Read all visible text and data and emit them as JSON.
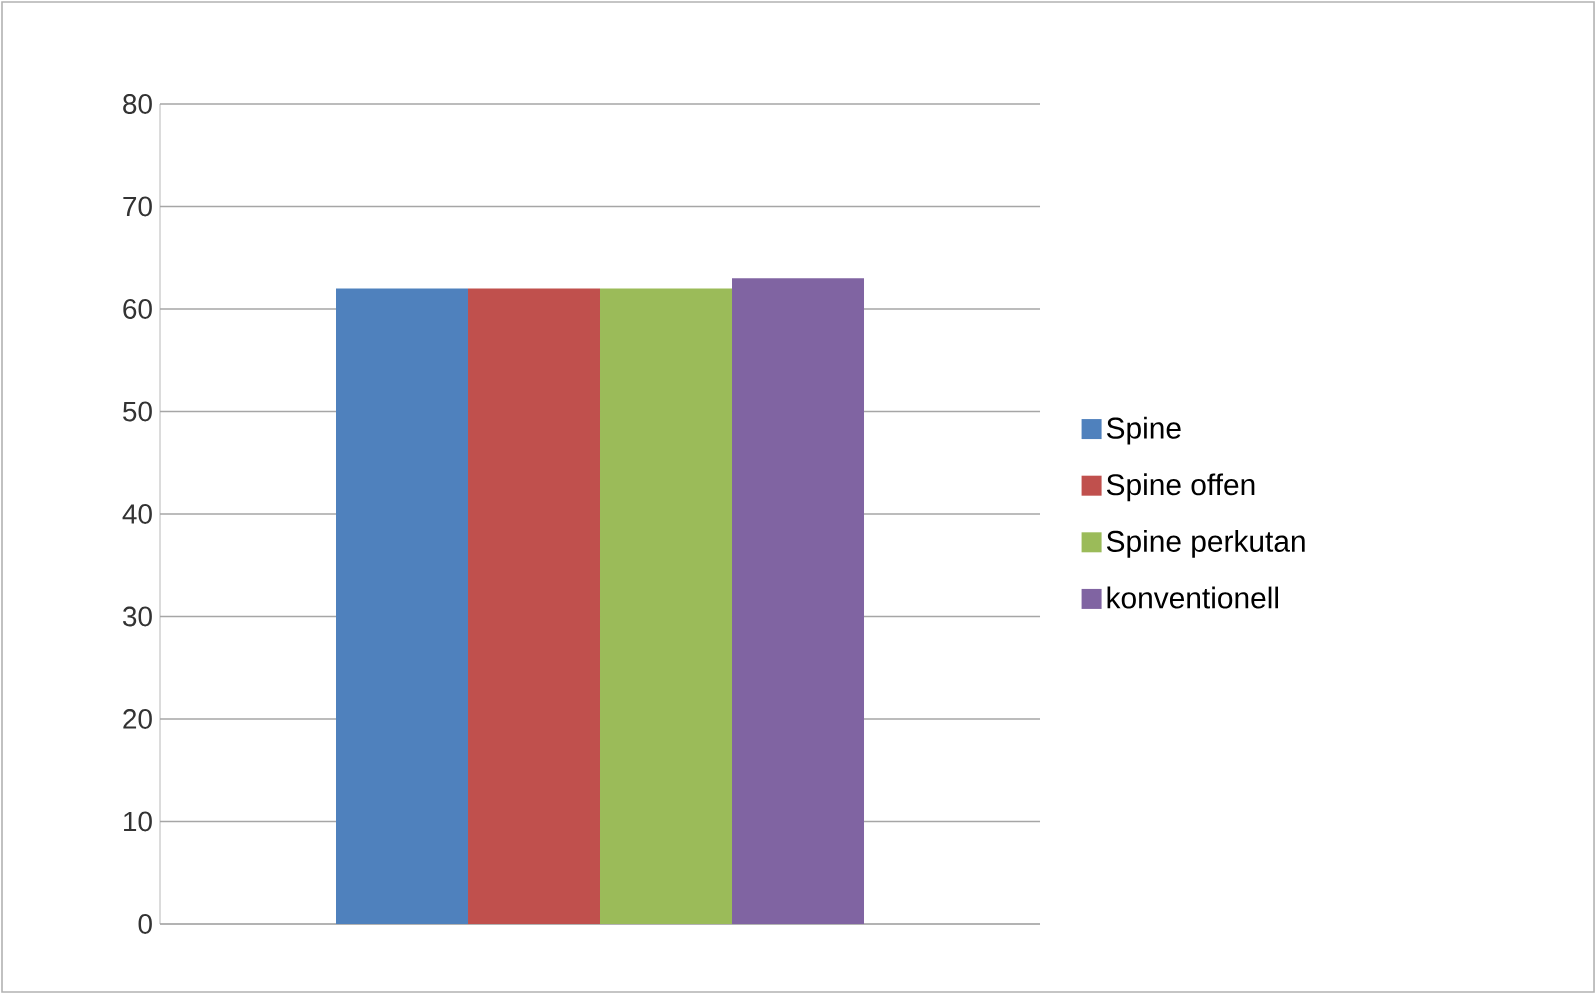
{
  "chart_data": {
    "type": "bar",
    "categories": [
      null
    ],
    "series": [
      {
        "name": "Spine",
        "color": "#4f81bd",
        "values": [
          62
        ]
      },
      {
        "name": "Spine offen",
        "color": "#c0504d",
        "values": [
          62
        ]
      },
      {
        "name": "Spine perkutan",
        "color": "#9bbb59",
        "values": [
          62
        ]
      },
      {
        "name": "konventionell",
        "color": "#8064a2",
        "values": [
          63
        ]
      }
    ],
    "ylim": [
      0,
      80
    ],
    "yticks": [
      0,
      10,
      20,
      30,
      40,
      50,
      60,
      70,
      80
    ],
    "grid": "y",
    "legend": "right"
  }
}
